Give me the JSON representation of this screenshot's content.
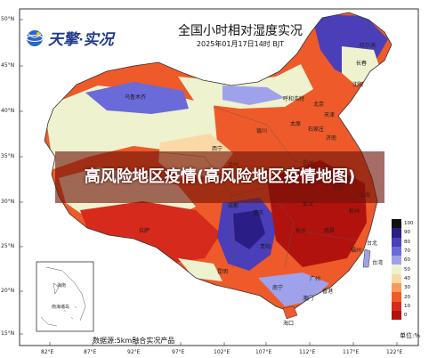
{
  "brand": {
    "name": "天擎·实况",
    "icon": "globe-logo-icon"
  },
  "map": {
    "title": "全国小时相对湿度实况",
    "time": "2025年01月17日14时 BJT",
    "source": "数据源:5km融合实况产品",
    "unit_label": "单位:%",
    "overlay": "高风险地区疫情(高风险地区疫情地图)"
  },
  "lat_labels": [
    "50°N",
    "45°N",
    "40°N",
    "35°N",
    "30°N",
    "25°N",
    "20°N",
    "15°N"
  ],
  "lon_labels": [
    "82°E",
    "87°E",
    "92°E",
    "97°E",
    "102°E",
    "107°E",
    "112°E",
    "117°E",
    "122°E"
  ],
  "legend": {
    "values": [
      "100",
      "90",
      "80",
      "70",
      "60",
      "50",
      "40",
      "30",
      "20",
      "10",
      "0"
    ],
    "colors": [
      "#111111",
      "#2a1e86",
      "#4a3fb8",
      "#6a6ad8",
      "#9fa2ea",
      "#eef2cf",
      "#fbd9a6",
      "#f79a5c",
      "#ef5a2a",
      "#d62a1c",
      "#b2120e"
    ]
  },
  "cities": [
    "北京",
    "天津",
    "太原",
    "郑州",
    "合肥",
    "武汉",
    "长沙",
    "南昌",
    "贵阳",
    "南宁",
    "广州",
    "香港",
    "澳门",
    "台北",
    "福州",
    "南京",
    "上海",
    "杭州",
    "重庆",
    "成都",
    "拉萨",
    "西宁",
    "兰州",
    "银川",
    "沈阳",
    "长春",
    "哈尔滨",
    "呼和浩特",
    "乌鲁木齐",
    "西安",
    "济南",
    "石家庄",
    "昆明",
    "海口",
    "台湾"
  ],
  "inset": {
    "labels": [
      "海南",
      "南海诸岛"
    ]
  }
}
